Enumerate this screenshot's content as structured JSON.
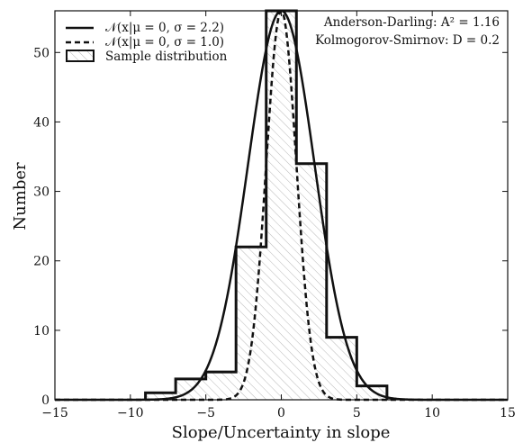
{
  "chart_data": {
    "type": "bar",
    "xlabel": "Slope/Uncertainty in slope",
    "ylabel": "Number",
    "xlim": [
      -15,
      15
    ],
    "ylim": [
      0,
      56
    ],
    "xticks": [
      -15,
      -10,
      -5,
      0,
      5,
      10,
      15
    ],
    "xtick_labels": [
      "−15",
      "−10",
      "−5",
      "0",
      "5",
      "10",
      "15"
    ],
    "yticks": [
      0,
      10,
      20,
      30,
      40,
      50
    ],
    "ytick_labels": [
      "0",
      "10",
      "20",
      "30",
      "40",
      "50"
    ],
    "histogram": {
      "name": "Sample distribution",
      "bin_edges": [
        -9,
        -7,
        -5,
        -3,
        -1,
        1,
        3,
        5,
        7
      ],
      "counts": [
        1,
        3,
        4,
        22,
        56,
        34,
        9,
        2
      ],
      "hatch": "diagonal"
    },
    "series": [
      {
        "name": "N(x|μ = 0, σ = 2.2)",
        "type": "line",
        "style": "solid",
        "mu": 0,
        "sigma": 2.2,
        "peak": 56
      },
      {
        "name": "N(x|μ = 0, σ = 1.0)",
        "type": "line",
        "style": "dashed",
        "mu": 0,
        "sigma": 1.0,
        "peak": 56
      }
    ],
    "legend": {
      "position": "top-left",
      "entries": [
        "𝒩(x|μ = 0, σ = 2.2)",
        "𝒩(x|μ = 0, σ = 1.0)",
        "Sample distribution"
      ]
    },
    "annotations": [
      "Anderson-Darling: A² = 1.16",
      "Kolmogorov-Smirnov: D = 0.2"
    ],
    "grid": false
  }
}
